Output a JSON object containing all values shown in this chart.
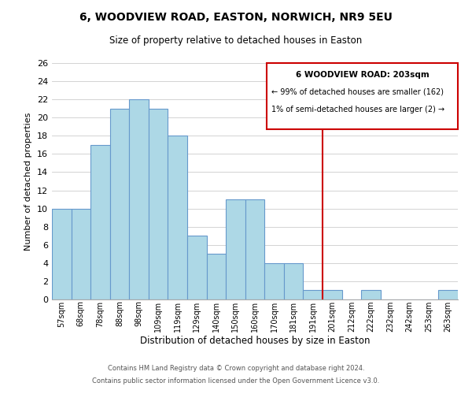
{
  "title": "6, WOODVIEW ROAD, EASTON, NORWICH, NR9 5EU",
  "subtitle": "Size of property relative to detached houses in Easton",
  "xlabel": "Distribution of detached houses by size in Easton",
  "ylabel": "Number of detached properties",
  "bin_labels": [
    "57sqm",
    "68sqm",
    "78sqm",
    "88sqm",
    "98sqm",
    "109sqm",
    "119sqm",
    "129sqm",
    "140sqm",
    "150sqm",
    "160sqm",
    "170sqm",
    "181sqm",
    "191sqm",
    "201sqm",
    "212sqm",
    "222sqm",
    "232sqm",
    "242sqm",
    "253sqm",
    "263sqm"
  ],
  "bar_heights": [
    10,
    10,
    17,
    21,
    22,
    21,
    18,
    7,
    5,
    11,
    11,
    4,
    4,
    1,
    1,
    0,
    1,
    0,
    0,
    0,
    1
  ],
  "bar_color": "#add8e6",
  "bar_edge_color": "#6699cc",
  "vline_x_index": 14,
  "vline_color": "#cc0000",
  "ylim": [
    0,
    26
  ],
  "yticks": [
    0,
    2,
    4,
    6,
    8,
    10,
    12,
    14,
    16,
    18,
    20,
    22,
    24,
    26
  ],
  "annotation_title": "6 WOODVIEW ROAD: 203sqm",
  "annotation_line1": "← 99% of detached houses are smaller (162)",
  "annotation_line2": "1% of semi-detached houses are larger (2) →",
  "footer1": "Contains HM Land Registry data © Crown copyright and database right 2024.",
  "footer2": "Contains public sector information licensed under the Open Government Licence v3.0."
}
